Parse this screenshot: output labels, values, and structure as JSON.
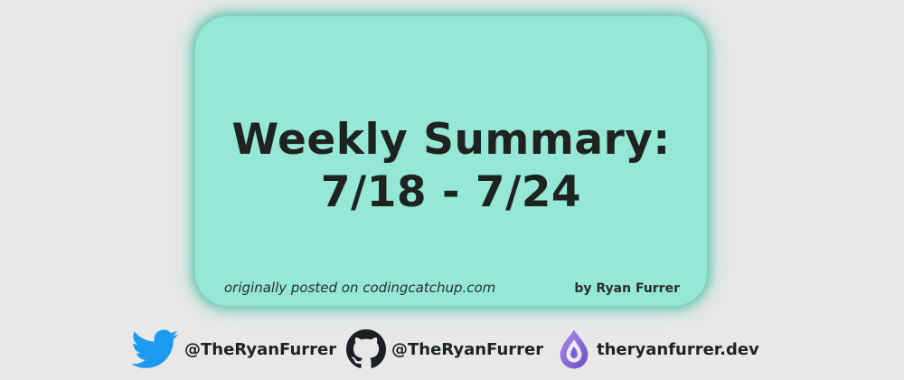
{
  "card": {
    "title_line1": "Weekly Summary:",
    "title_line2": "7/18 - 7/24",
    "source": "originally posted on codingcatchup.com",
    "author": "by Ryan Furrer"
  },
  "social": {
    "twitter_handle": "@TheRyanFurrer",
    "github_handle": "@TheRyanFurrer",
    "website": "theryanfurrer.dev"
  },
  "icons": {
    "twitter": "twitter-bird-icon",
    "github": "github-octocat-icon",
    "website": "drop-logo-icon"
  },
  "colors": {
    "background": "#e8e8e8",
    "card": "#95e8d6",
    "card_glow": "#5ec4aa",
    "text": "#1e2320",
    "twitter_blue": "#1d9bf0",
    "drop_purple": "#8b6fd6"
  }
}
